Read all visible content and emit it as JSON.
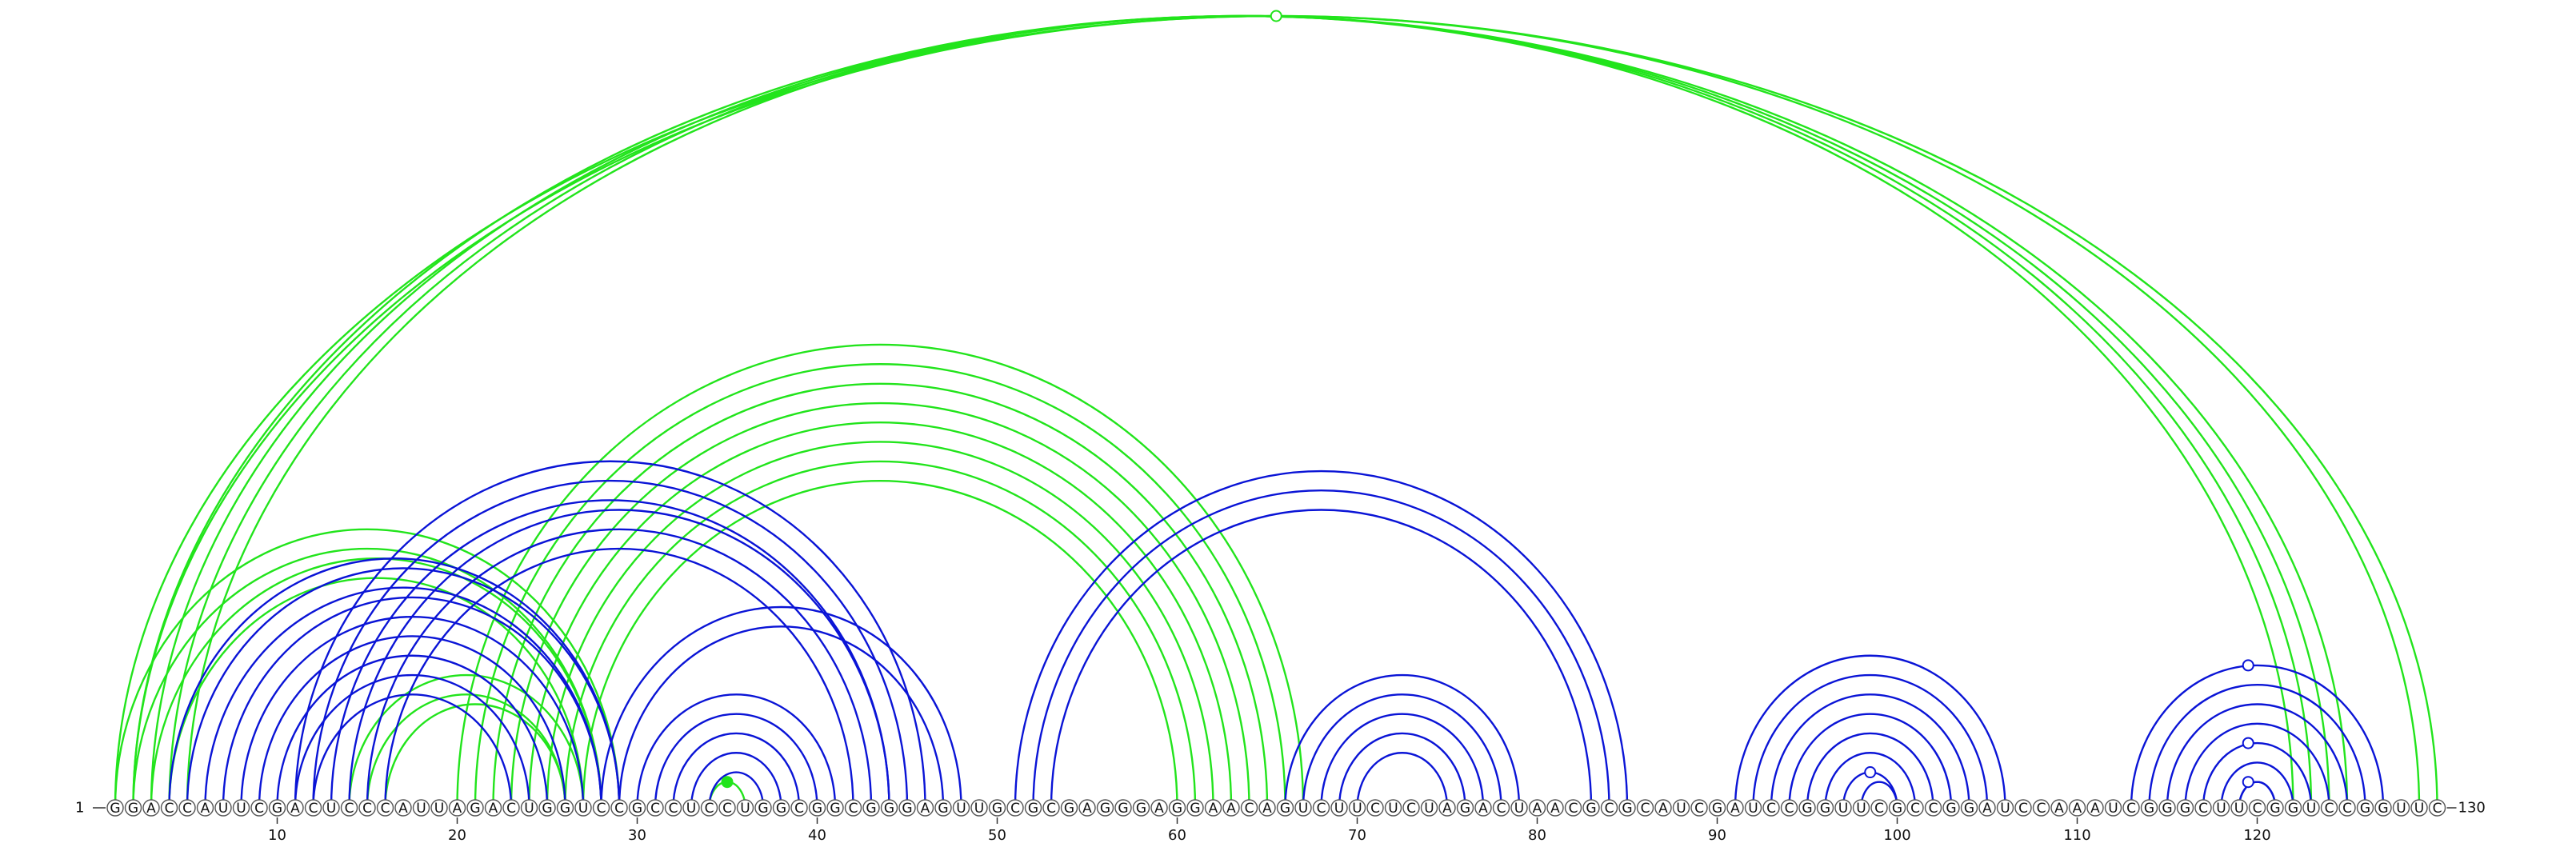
{
  "chart_data": {
    "type": "arc-diagram",
    "sequence": "GGACCAUUCGACUCCCAUUAGACUGGUCCGCCUCCUGGCGGCGGGAGUUGCGCGAGGGAGGAACAGUCUUCUCUAGACUAACGCGCAUCGAUCCGGUUCGCCGGAUCCAAAUCGGGCUUCGGUCCGGUUC",
    "start_label": "1",
    "end_label": "130",
    "ticks": [
      10,
      20,
      30,
      40,
      50,
      60,
      70,
      80,
      90,
      100,
      110,
      120
    ],
    "colors": {
      "blue": "#0a14d6",
      "green": "#22e41c"
    },
    "series": [
      {
        "color": "green",
        "pairs": [
          [
            1,
            130
          ],
          [
            2,
            129
          ],
          [
            2,
            125
          ],
          [
            3,
            124
          ],
          [
            4,
            123
          ],
          [
            5,
            122
          ],
          [
            1,
            29
          ],
          [
            2,
            28
          ],
          [
            3,
            28
          ],
          [
            4,
            27
          ],
          [
            14,
            27
          ],
          [
            15,
            26
          ],
          [
            16,
            26
          ],
          [
            20,
            67
          ],
          [
            21,
            66
          ],
          [
            22,
            65
          ],
          [
            23,
            64
          ],
          [
            24,
            63
          ],
          [
            25,
            62
          ],
          [
            26,
            61
          ],
          [
            27,
            60
          ],
          [
            34,
            36
          ]
        ],
        "markers": [
          {
            "at": 65.5,
            "pair": [
              1,
              130
            ],
            "filled": false
          },
          {
            "at": 35,
            "pair": [
              34,
              36
            ],
            "filled": true
          }
        ]
      },
      {
        "color": "blue",
        "pairs": [
          [
            4,
            29
          ],
          [
            5,
            29
          ],
          [
            6,
            28
          ],
          [
            7,
            28
          ],
          [
            8,
            27
          ],
          [
            9,
            26
          ],
          [
            10,
            25
          ],
          [
            11,
            24
          ],
          [
            12,
            23
          ],
          [
            11,
            46
          ],
          [
            12,
            45
          ],
          [
            13,
            44
          ],
          [
            14,
            44
          ],
          [
            15,
            43
          ],
          [
            16,
            42
          ],
          [
            28,
            48
          ],
          [
            29,
            47
          ],
          [
            30,
            41
          ],
          [
            31,
            40
          ],
          [
            32,
            39
          ],
          [
            33,
            38
          ],
          [
            34,
            37
          ],
          [
            51,
            85
          ],
          [
            52,
            84
          ],
          [
            53,
            83
          ],
          [
            66,
            79
          ],
          [
            67,
            78
          ],
          [
            68,
            77
          ],
          [
            69,
            76
          ],
          [
            70,
            75
          ],
          [
            91,
            106
          ],
          [
            92,
            105
          ],
          [
            93,
            104
          ],
          [
            94,
            103
          ],
          [
            95,
            102
          ],
          [
            96,
            101
          ],
          [
            97,
            100
          ],
          [
            98,
            100
          ],
          [
            113,
            127
          ],
          [
            114,
            126
          ],
          [
            115,
            125
          ],
          [
            116,
            124
          ],
          [
            117,
            123
          ],
          [
            118,
            122
          ],
          [
            119,
            121
          ],
          [
            119,
            121
          ]
        ],
        "markers": [
          {
            "at": 98.5,
            "pair": [
              97,
              100
            ],
            "filled": false
          },
          {
            "at": 119.5,
            "pair": [
              113,
              127
            ],
            "filled": false
          },
          {
            "at": 119.5,
            "pair": [
              117,
              123
            ],
            "filled": false
          },
          {
            "at": 119.5,
            "pair": [
              119,
              121
            ],
            "filled": false
          }
        ]
      }
    ]
  }
}
